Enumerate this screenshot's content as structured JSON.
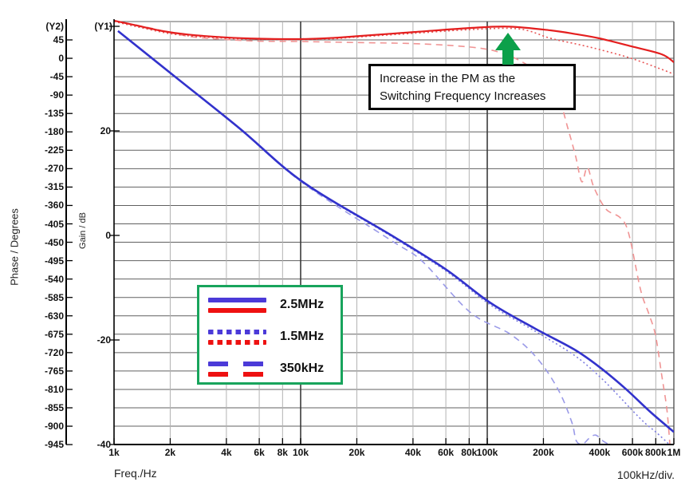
{
  "annotation": {
    "line1": "Increase in the PM as the",
    "line2": "Switching Frequency Increases",
    "arrow_color": "#0ca04a"
  },
  "chart_data": {
    "type": "line",
    "title": "",
    "x_axis": {
      "label": "Freq./Hz",
      "unit_note": "100kHz/div.",
      "scale": "log",
      "min": 1000,
      "max": 1000000,
      "ticks": [
        {
          "f": 1000,
          "label": "1k"
        },
        {
          "f": 2000,
          "label": "2k"
        },
        {
          "f": 4000,
          "label": "4k"
        },
        {
          "f": 6000,
          "label": "6k"
        },
        {
          "f": 8000,
          "label": "8k"
        },
        {
          "f": 10000,
          "label": "10k"
        },
        {
          "f": 20000,
          "label": "20k"
        },
        {
          "f": 40000,
          "label": "40k"
        },
        {
          "f": 60000,
          "label": "60k"
        },
        {
          "f": 80000,
          "label": "80k"
        },
        {
          "f": 100000,
          "label": "100k"
        },
        {
          "f": 200000,
          "label": "200k"
        },
        {
          "f": 400000,
          "label": "400k"
        },
        {
          "f": 600000,
          "label": "600k"
        },
        {
          "f": 800000,
          "label": "800k"
        },
        {
          "f": 1000000,
          "label": "1M"
        }
      ],
      "major_gridlines_at": [
        10000,
        100000
      ]
    },
    "y2_axis": {
      "name": "(Y2)",
      "label": "Phase / Degrees",
      "tick_step": 45,
      "ticks": [
        45,
        0,
        -45,
        -90,
        -135,
        -180,
        -225,
        -270,
        -315,
        -360,
        -405,
        -450,
        -495,
        -540,
        -585,
        -630,
        -675,
        -720,
        -765,
        -810,
        -855,
        -900,
        -945
      ]
    },
    "y1_axis": {
      "name": "(Y1)",
      "label": "Gain / dB",
      "min": -40,
      "max": 40,
      "ticks": [
        {
          "v": 40,
          "label": ""
        },
        {
          "v": 20,
          "label": "20"
        },
        {
          "v": 0,
          "label": "0"
        },
        {
          "v": -20,
          "label": "-20"
        },
        {
          "v": -40,
          "label": "-40"
        }
      ]
    },
    "grid": {
      "h_color": "#606060",
      "v_color": "#b2b2b2",
      "v_major_color": "#3a3a3a"
    },
    "legend": {
      "border_color": "#18a45c",
      "blue_color": "#4b3ad8",
      "red_color": "#ee1111",
      "entries": [
        {
          "label": "2.5MHz",
          "line_style": "solid"
        },
        {
          "label": "1.5MHz",
          "line_style": "dotted"
        },
        {
          "label": "350kHz",
          "line_style": "dashed"
        }
      ]
    },
    "series": [
      {
        "id": "gain-350khz",
        "name": "350kHz gain",
        "axis": "y1",
        "dash": "dashed",
        "color": "#9a9ae8",
        "width": 1.6,
        "points": [
          [
            1050,
            39.1
          ],
          [
            2100,
            30.5
          ],
          [
            4700,
            20.4
          ],
          [
            10300,
            10.0
          ],
          [
            30700,
            -1.0
          ],
          [
            45000,
            -5.0
          ],
          [
            81000,
            -14.7
          ],
          [
            133000,
            -18.9
          ],
          [
            185000,
            -23.5
          ],
          [
            240000,
            -29.5
          ],
          [
            283000,
            -35.6
          ],
          [
            300000,
            -39.3
          ],
          [
            325000,
            -39.9
          ],
          [
            352000,
            -38.8
          ],
          [
            381000,
            -38.2
          ],
          [
            420000,
            -39.4
          ],
          [
            445000,
            -39.9
          ]
        ]
      },
      {
        "id": "gain-1p5mhz",
        "name": "1.5MHz gain",
        "axis": "y1",
        "dash": "dotted",
        "color": "#7d7de0",
        "width": 1.6,
        "points": [
          [
            1050,
            39.1
          ],
          [
            2100,
            30.5
          ],
          [
            4700,
            20.4
          ],
          [
            10300,
            10.1
          ],
          [
            30700,
            -0.2
          ],
          [
            60000,
            -6.8
          ],
          [
            104000,
            -13.3
          ],
          [
            180000,
            -18.3
          ],
          [
            292000,
            -22.9
          ],
          [
            400000,
            -27.0
          ],
          [
            500000,
            -30.5
          ],
          [
            600000,
            -33.5
          ],
          [
            700000,
            -35.9
          ],
          [
            800000,
            -37.6
          ],
          [
            940000,
            -39.9
          ]
        ]
      },
      {
        "id": "phase-350khz",
        "name": "350kHz phase",
        "axis": "y2",
        "dash": "dashed",
        "color": "#f09494",
        "width": 1.6,
        "points": [
          [
            1000,
            92
          ],
          [
            1500,
            76
          ],
          [
            2500,
            54
          ],
          [
            4000,
            46
          ],
          [
            6000,
            42
          ],
          [
            10000,
            41
          ],
          [
            20000,
            38.5
          ],
          [
            40000,
            36
          ],
          [
            70000,
            30
          ],
          [
            100000,
            22
          ],
          [
            125000,
            10
          ],
          [
            147000,
            -4
          ],
          [
            175000,
            -25
          ],
          [
            207000,
            -53
          ],
          [
            240000,
            -92
          ],
          [
            270000,
            -170
          ],
          [
            297000,
            -238
          ],
          [
            321000,
            -302
          ],
          [
            344000,
            -267
          ],
          [
            373000,
            -316
          ],
          [
            433000,
            -369
          ],
          [
            516000,
            -390
          ],
          [
            573000,
            -429
          ],
          [
            663000,
            -566
          ],
          [
            733000,
            -624
          ],
          [
            797000,
            -677
          ],
          [
            860000,
            -774
          ],
          [
            917000,
            -858
          ],
          [
            952000,
            -944
          ]
        ]
      },
      {
        "id": "phase-1p5mhz",
        "name": "1.5MHz phase",
        "axis": "y2",
        "dash": "dotted",
        "color": "#e85555",
        "width": 1.6,
        "points": [
          [
            1000,
            90
          ],
          [
            1800,
            64
          ],
          [
            2500,
            55
          ],
          [
            4000,
            49
          ],
          [
            6000,
            46.5
          ],
          [
            10000,
            45.5
          ],
          [
            15000,
            48
          ],
          [
            20000,
            52
          ],
          [
            40000,
            61
          ],
          [
            80000,
            70
          ],
          [
            147000,
            72
          ],
          [
            218000,
            49
          ],
          [
            300000,
            35
          ],
          [
            398000,
            21.6
          ],
          [
            590000,
            0
          ],
          [
            860000,
            -27
          ],
          [
            1000000,
            -39
          ]
        ]
      },
      {
        "id": "phase-2p5mhz",
        "name": "2.5MHz phase",
        "axis": "y2",
        "dash": "solid",
        "color": "#e41f1f",
        "width": 2.2,
        "points": [
          [
            1000,
            92
          ],
          [
            1300,
            81
          ],
          [
            1800,
            67
          ],
          [
            2500,
            58
          ],
          [
            4000,
            51
          ],
          [
            6000,
            48
          ],
          [
            10000,
            47
          ],
          [
            15000,
            50
          ],
          [
            20000,
            54
          ],
          [
            40000,
            64
          ],
          [
            80000,
            74
          ],
          [
            130000,
            77.5
          ],
          [
            218000,
            68.4
          ],
          [
            300000,
            59
          ],
          [
            398000,
            48.9
          ],
          [
            590000,
            29.4
          ],
          [
            860000,
            9.9
          ],
          [
            1000000,
            -9.7
          ]
        ]
      },
      {
        "id": "gain-2p5mhz",
        "name": "2.5MHz gain",
        "axis": "y1",
        "dash": "solid",
        "color": "#3232cc",
        "width": 2.6,
        "points": [
          [
            1050,
            39.1
          ],
          [
            2100,
            30.5
          ],
          [
            4700,
            20.5
          ],
          [
            10300,
            10.2
          ],
          [
            30700,
            0
          ],
          [
            60000,
            -6.5
          ],
          [
            104000,
            -12.9
          ],
          [
            180000,
            -17.8
          ],
          [
            292000,
            -21.8
          ],
          [
            400000,
            -25.2
          ],
          [
            550000,
            -29.3
          ],
          [
            750000,
            -33.8
          ],
          [
            1000000,
            -37.6
          ]
        ]
      }
    ]
  }
}
